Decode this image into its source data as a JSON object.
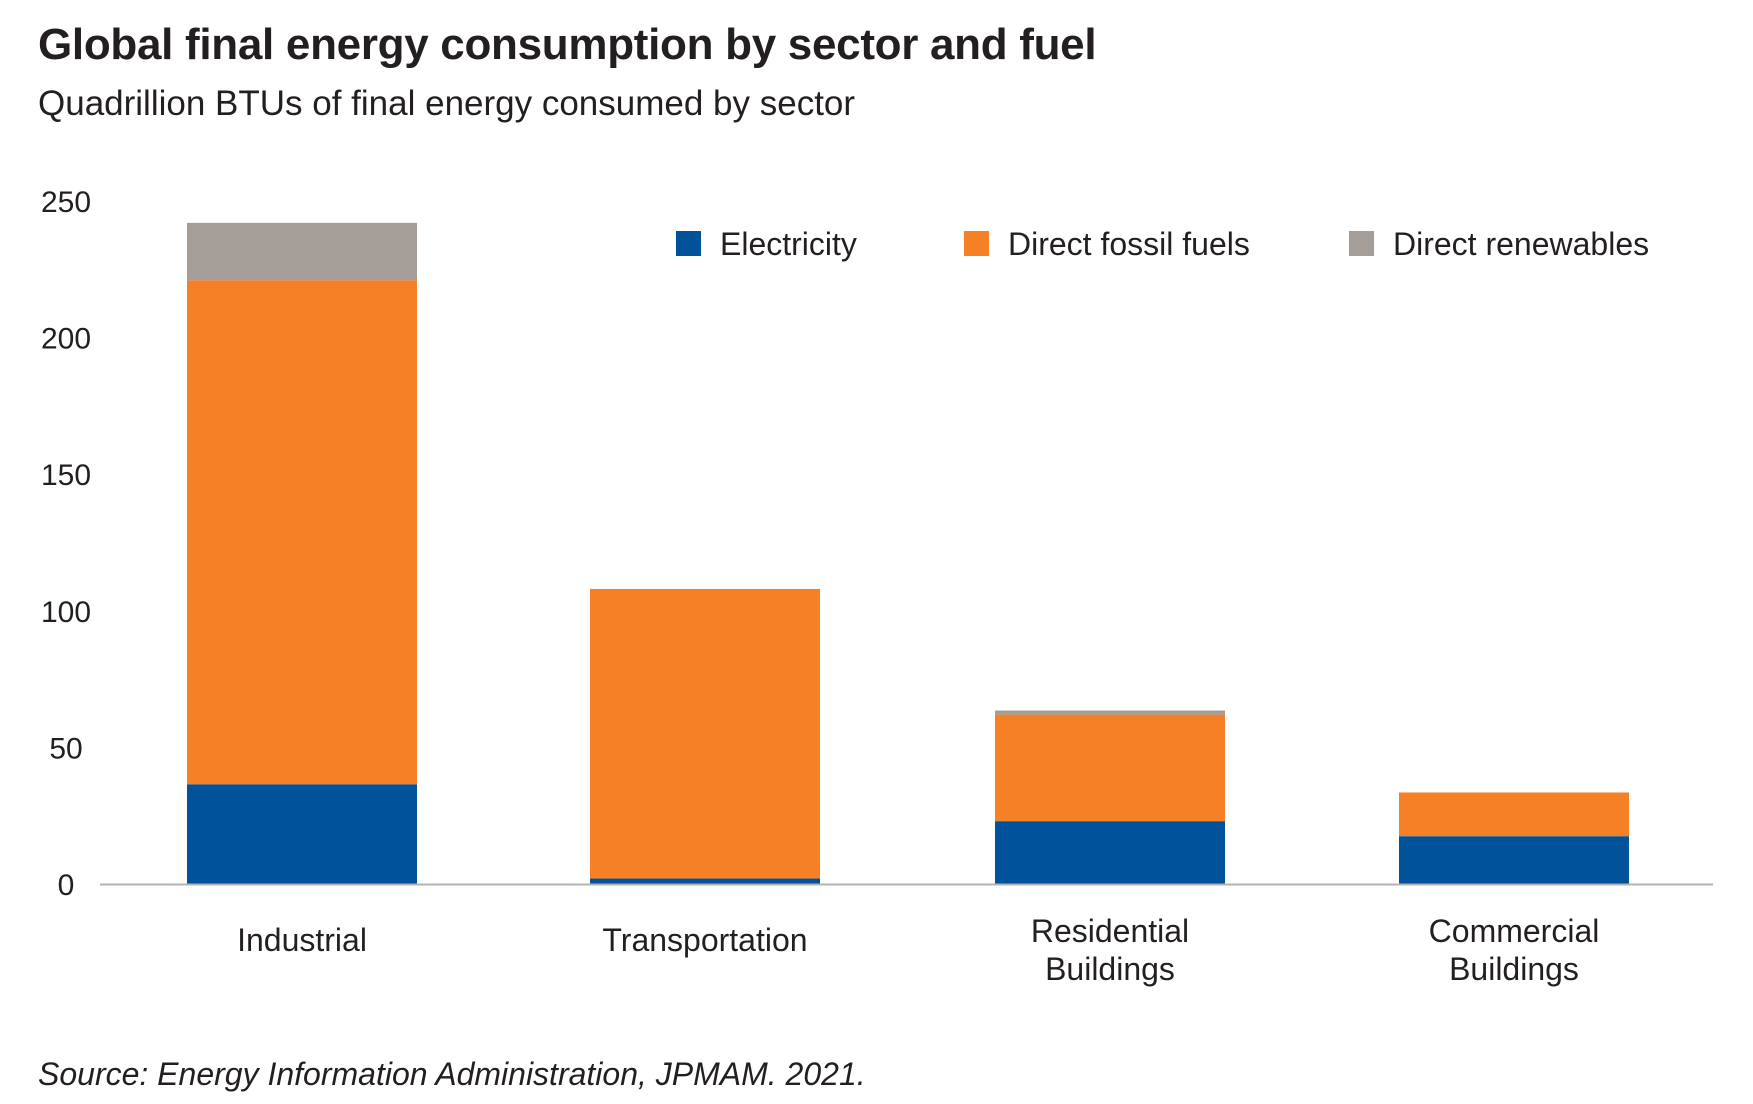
{
  "chart_data": {
    "type": "bar",
    "stacked": true,
    "title": "Global final energy consumption by sector and fuel",
    "subtitle": "Quadrillion BTUs of final energy consumed by sector",
    "source": "Source: Energy Information Administration, JPMAM. 2021.",
    "categories": [
      [
        "Industrial"
      ],
      [
        "Transportation"
      ],
      [
        "Residential",
        "Buildings"
      ],
      [
        "Commercial",
        "Buildings"
      ]
    ],
    "series": [
      {
        "name": "Electricity",
        "color": "#00539b",
        "values": [
          36.5,
          2,
          23,
          17.5
        ]
      },
      {
        "name": "Direct fossil fuels",
        "color": "#f58025",
        "values": [
          184.5,
          106,
          39,
          16
        ]
      },
      {
        "name": "Direct renewables",
        "color": "#a59d98",
        "values": [
          21,
          0,
          1.5,
          0
        ]
      }
    ],
    "ylim": [
      0,
      250
    ],
    "yticks": [
      0,
      50,
      100,
      150,
      200,
      250
    ],
    "grid": false,
    "legend": "top-right"
  }
}
